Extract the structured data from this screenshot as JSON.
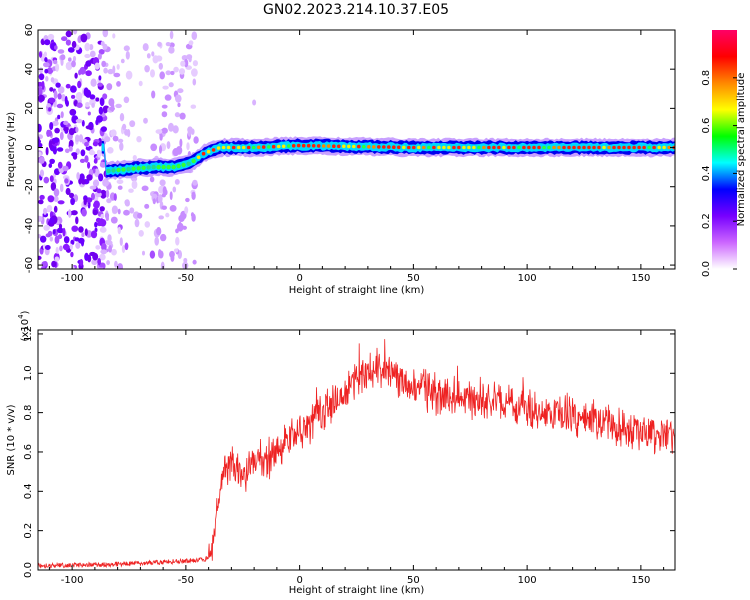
{
  "title": "GN02.2023.214.10.37.E05",
  "chart_data": [
    {
      "type": "heatmap",
      "xlabel": "Height of straight line (km)",
      "ylabel": "Frequency (Hz)",
      "xlim": [
        -115,
        165
      ],
      "ylim": [
        -62,
        60
      ],
      "x_ticks": [
        -100,
        -50,
        0,
        50,
        100,
        150
      ],
      "y_ticks": [
        -60,
        -40,
        -20,
        0,
        20,
        40,
        60
      ],
      "colorbar": {
        "label": "Normalized spectral amplitude",
        "range": [
          0.0,
          1.0
        ],
        "ticks": [
          "0.0",
          "0.2",
          "0.4",
          "0.6",
          "0.8"
        ],
        "tick_values": [
          0.0,
          0.2,
          0.4,
          0.6,
          0.8
        ],
        "colors": [
          "#ffffff",
          "#cc66ff",
          "#7700ff",
          "#0000ff",
          "#00ffff",
          "#00ff00",
          "#ffff00",
          "#ff8800",
          "#ff0000",
          "#ff0066"
        ]
      },
      "ridge": [
        {
          "x": -85,
          "f": -12
        },
        {
          "x": -75,
          "f": -11
        },
        {
          "x": -65,
          "f": -10
        },
        {
          "x": -55,
          "f": -10
        },
        {
          "x": -48,
          "f": -8
        },
        {
          "x": -42,
          "f": -3
        },
        {
          "x": -35,
          "f": 0
        },
        {
          "x": -20,
          "f": 0
        },
        {
          "x": 0,
          "f": 1
        },
        {
          "x": 50,
          "f": 0
        },
        {
          "x": 100,
          "f": 0
        },
        {
          "x": 165,
          "f": 0
        }
      ],
      "grid": false
    },
    {
      "type": "line",
      "xlabel": "Height of straight line (km)",
      "ylabel": "SNR (10 * v/v)",
      "y_multiplier": "(x10",
      "y_multiplier_exp": "4",
      "y_multiplier_close": ")",
      "xlim": [
        -115,
        165
      ],
      "ylim": [
        0,
        1.22
      ],
      "x_ticks": [
        -100,
        -50,
        0,
        50,
        100,
        150
      ],
      "y_ticks": [
        "0.0",
        "0.2",
        "0.4",
        "0.6",
        "0.8",
        "1.0",
        "1.2"
      ],
      "y_tick_values": [
        0.0,
        0.2,
        0.4,
        0.6,
        0.8,
        1.0,
        1.2
      ],
      "series_color": "#ee2222",
      "series": [
        {
          "x": [
            -115,
            -80,
            -60,
            -45,
            -40,
            -38,
            -35,
            -33,
            -30,
            -25,
            -20,
            -15,
            -10,
            -5,
            0,
            5,
            10,
            15,
            20,
            25,
            30,
            35,
            40,
            45,
            50,
            60,
            70,
            80,
            90,
            100,
            110,
            120,
            130,
            140,
            150,
            160,
            165
          ],
          "y": [
            0.02,
            0.03,
            0.04,
            0.05,
            0.06,
            0.15,
            0.4,
            0.5,
            0.55,
            0.5,
            0.55,
            0.55,
            0.6,
            0.65,
            0.7,
            0.75,
            0.8,
            0.85,
            0.9,
            0.95,
            1.0,
            1.03,
            1.0,
            0.95,
            0.93,
            0.9,
            0.88,
            0.86,
            0.84,
            0.82,
            0.8,
            0.78,
            0.76,
            0.72,
            0.7,
            0.68,
            0.66
          ],
          "noise_amplitude": 0.08
        }
      ],
      "grid": false
    }
  ]
}
